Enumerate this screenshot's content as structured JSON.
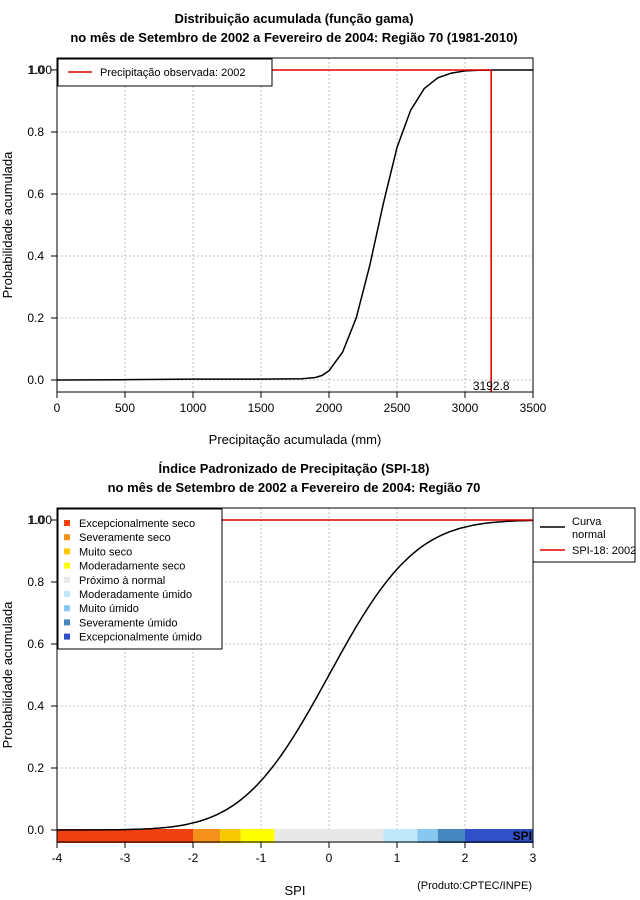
{
  "chart_data": [
    {
      "type": "line",
      "title_line1": "Distribuição acumulada (função gama)",
      "title_line2": "no mês de Setembro de 2002 a Fevereiro de 2004: Região 70 (1981-2010)",
      "xlabel": "Precipitação acumulada (mm)",
      "ylabel": "Probabilidade acumulada",
      "xlim": [
        0,
        3500
      ],
      "ylim": [
        0,
        1
      ],
      "x_ticks": [
        0,
        500,
        1000,
        1500,
        2000,
        2500,
        3000,
        3500
      ],
      "y_ticks": [
        "0.0",
        "0.2",
        "0.4",
        "0.6",
        "0.8",
        "1.0"
      ],
      "y_top_label": "1.00",
      "legend": [
        {
          "label": "Precipitação observada: 2002",
          "color": "#e00000"
        }
      ],
      "series": [
        {
          "name": "Distribuição gama acumulada",
          "color": "#000000",
          "x": [
            0,
            500,
            1000,
            1500,
            1800,
            1900,
            1950,
            2000,
            2100,
            2200,
            2300,
            2400,
            2500,
            2600,
            2700,
            2800,
            2900,
            3000,
            3100,
            3200,
            3500
          ],
          "y": [
            0.0,
            0.001,
            0.003,
            0.003,
            0.004,
            0.008,
            0.015,
            0.03,
            0.09,
            0.2,
            0.37,
            0.57,
            0.75,
            0.87,
            0.94,
            0.975,
            0.99,
            0.997,
            0.999,
            1.0,
            1.0
          ]
        }
      ],
      "observed": {
        "value": 3192.8,
        "label": "3192.8",
        "probability": 1.0
      }
    },
    {
      "type": "line",
      "title_line1": "Índice Padronizado de Precipitação (SPI-18)",
      "title_line2": "no mês de Setembro de 2002 a Fevereiro de 2004: Região 70",
      "xlabel": "SPI",
      "ylabel": "Probabilidade acumulada",
      "xlim": [
        -4,
        3
      ],
      "ylim": [
        0,
        1
      ],
      "x_ticks": [
        -4,
        -3,
        -2,
        -1,
        0,
        1,
        2,
        3
      ],
      "y_ticks": [
        "0.0",
        "0.2",
        "0.4",
        "0.6",
        "0.8",
        "1.0"
      ],
      "y_top_label": "1.00",
      "categories_legend": [
        {
          "label": "Excepcionalmente seco",
          "color": "#f04010"
        },
        {
          "label": "Severamente seco",
          "color": "#f5901a"
        },
        {
          "label": "Muito seco",
          "color": "#f8c800"
        },
        {
          "label": "Moderadamente seco",
          "color": "#ffff00"
        },
        {
          "label": "Próximo à normal",
          "color": "#e8e8e8"
        },
        {
          "label": "Moderadamente úmido",
          "color": "#bfe8f8"
        },
        {
          "label": "Muito úmido",
          "color": "#88c8f0"
        },
        {
          "label": "Severamente úmido",
          "color": "#4888c0"
        },
        {
          "label": "Excepcionalmente úmido",
          "color": "#3050c8"
        }
      ],
      "category_bands": [
        {
          "from": -4,
          "to": -2,
          "color": "#f04010"
        },
        {
          "from": -2,
          "to": -1.6,
          "color": "#f5901a"
        },
        {
          "from": -1.6,
          "to": -1.3,
          "color": "#f8c800"
        },
        {
          "from": -1.3,
          "to": -0.8,
          "color": "#ffff00"
        },
        {
          "from": -0.8,
          "to": 0.8,
          "color": "#e8e8e8"
        },
        {
          "from": 0.8,
          "to": 1.3,
          "color": "#bfe8f8"
        },
        {
          "from": 1.3,
          "to": 1.6,
          "color": "#88c8f0"
        },
        {
          "from": 1.6,
          "to": 2.0,
          "color": "#4888c0"
        },
        {
          "from": 2.0,
          "to": 3.0,
          "color": "#3050c8"
        }
      ],
      "series_legend": [
        {
          "label": "Curva normal",
          "label_line1": "Curva",
          "label_line2": "normal",
          "color": "#000000"
        },
        {
          "label": "SPI-18: 2002",
          "color": "#e00000"
        }
      ],
      "spi_marker_label": "SPI",
      "spi_value": 3.0,
      "spi_probability": 1.0,
      "credit": "(Produto:CPTEC/INPE)"
    }
  ]
}
